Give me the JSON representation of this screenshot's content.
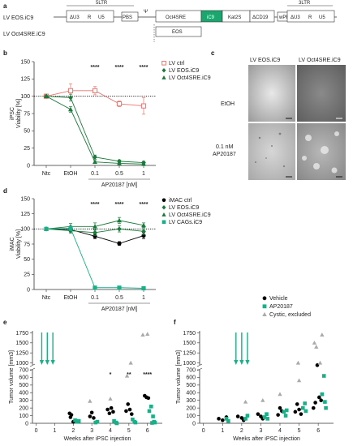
{
  "panels": {
    "a": "a",
    "b": "b",
    "c": "c",
    "d": "d",
    "e": "e",
    "f": "f"
  },
  "construct": {
    "ltr5": "5LTR",
    "ltr3": "3LTR",
    "dU3": "ΔU3",
    "R": "R",
    "U5": "U5",
    "PBS": "PBS",
    "psi": "Ψ",
    "oct4sre": "Oct4SRE",
    "ic9": "iC9",
    "kat2s": "Kat2S",
    "dcd19": "ΔCD19",
    "wpre": "wPRE",
    "eos": "EOS",
    "line1": "LV EOS.iC9",
    "line2": "LV Oct4SRE.iC9"
  },
  "colors": {
    "ctrl": "#e8756f",
    "green_dark": "#1a7a3a",
    "teal": "#18b089",
    "gray": "#aaaaaa",
    "black": "#000000"
  },
  "micrograph": {
    "col1": "LV EOS.iC9",
    "col2": "LV Oct4SRE.iC9",
    "row1": "EtOH",
    "row2a": "0.1 nM",
    "row2b": "AP20187"
  },
  "chart_data": [
    {
      "id": "b",
      "type": "line",
      "categories": [
        "Ntc",
        "EtOH",
        "0.1",
        "0.5",
        "1"
      ],
      "xlabel": "AP20187 [nM]",
      "ylabel_top": "iPSC",
      "ylabel_bottom": "Viability [%]",
      "ylim": [
        0,
        150
      ],
      "yticks": [
        0,
        25,
        50,
        75,
        100,
        125,
        150
      ],
      "reference_line": 100,
      "stars": [
        "****",
        "****",
        "****"
      ],
      "series": [
        {
          "name": "LV ctrl",
          "values": [
            100,
            108,
            108,
            89,
            86
          ],
          "err": [
            0,
            10,
            6,
            4,
            12
          ],
          "marker": "square-open",
          "color": "#e8756f"
        },
        {
          "name": "LV EOS.iC9",
          "values": [
            100,
            98,
            12,
            6,
            4
          ],
          "err": [
            0,
            5,
            3,
            2,
            2
          ],
          "marker": "diamond",
          "color": "#1a7a3a"
        },
        {
          "name": "LV Oct4SRE.iC9",
          "values": [
            100,
            81,
            5,
            3,
            2
          ],
          "err": [
            0,
            4,
            2,
            2,
            2
          ],
          "marker": "triangle",
          "color": "#1a7a3a"
        }
      ]
    },
    {
      "id": "d",
      "type": "line",
      "categories": [
        "Ntc",
        "EtOH",
        "0.1",
        "0.5",
        "1"
      ],
      "xlabel": "AP20187 [nM]",
      "ylabel_top": "iMAC",
      "ylabel_bottom": "Viability [%]",
      "ylim": [
        0,
        150
      ],
      "yticks": [
        0,
        25,
        50,
        75,
        100,
        125,
        150
      ],
      "reference_line": 100,
      "stars": [
        "****",
        "****",
        "****"
      ],
      "series": [
        {
          "name": "iMAC ctrl",
          "values": [
            100,
            99,
            88,
            76,
            89
          ],
          "err": [
            0,
            4,
            4,
            3,
            5
          ],
          "marker": "circle",
          "color": "#000000"
        },
        {
          "name": "LV EOS.iC9",
          "values": [
            100,
            97,
            94,
            100,
            96
          ],
          "err": [
            0,
            4,
            5,
            5,
            6
          ],
          "marker": "diamond",
          "color": "#1a7a3a"
        },
        {
          "name": "LV Oct4SRE.iC9",
          "values": [
            100,
            104,
            104,
            114,
            106
          ],
          "err": [
            0,
            5,
            6,
            5,
            4
          ],
          "marker": "triangle",
          "color": "#1a7a3a"
        },
        {
          "name": "LV CAGs.iC9",
          "values": [
            100,
            101,
            3,
            3,
            2
          ],
          "err": [
            0,
            4,
            2,
            2,
            1
          ],
          "marker": "square",
          "color": "#18b089"
        }
      ]
    },
    {
      "id": "e",
      "type": "scatter",
      "xlabel": "Weeks after iPSC injection",
      "ylabel": "Tumor volume [mm3]",
      "x_ticks": [
        0,
        1,
        2,
        3,
        4,
        5,
        6
      ],
      "y_ticks_lower": [
        0,
        100,
        200,
        300,
        400,
        500,
        600,
        700
      ],
      "y_ticks_upper": [
        1000,
        1250,
        1500,
        1750
      ],
      "arrow_weeks": [
        0.3,
        0.6,
        0.9
      ],
      "stars": [
        {
          "week": 4,
          "text": "*"
        },
        {
          "week": 5,
          "text": "**"
        },
        {
          "week": 6,
          "text": "****"
        }
      ],
      "series": [
        {
          "name": "Vehicle",
          "marker": "circle",
          "color": "#000000",
          "points": [
            [
              1.8,
              130
            ],
            [
              1.9,
              110
            ],
            [
              2.0,
              20
            ],
            [
              1.85,
              80
            ],
            [
              2.9,
              90
            ],
            [
              3.0,
              140
            ],
            [
              3.1,
              70
            ],
            [
              3.85,
              180
            ],
            [
              3.95,
              130
            ],
            [
              4.05,
              200
            ],
            [
              4.15,
              150
            ],
            [
              4.85,
              160
            ],
            [
              4.95,
              250
            ],
            [
              5.05,
              180
            ],
            [
              5.15,
              120
            ],
            [
              5.85,
              360
            ],
            [
              5.95,
              340
            ],
            [
              6.05,
              330
            ]
          ]
        },
        {
          "name": "AP20187",
          "marker": "square",
          "color": "#18b089",
          "points": [
            [
              2.1,
              40
            ],
            [
              2.2,
              20
            ],
            [
              2.3,
              30
            ],
            [
              3.2,
              10
            ],
            [
              3.3,
              20
            ],
            [
              4.2,
              30
            ],
            [
              4.3,
              10
            ],
            [
              4.35,
              0
            ],
            [
              5.2,
              50
            ],
            [
              5.3,
              20
            ],
            [
              5.35,
              10
            ],
            [
              6.1,
              160
            ],
            [
              6.2,
              220
            ],
            [
              6.3,
              90
            ],
            [
              6.35,
              20
            ],
            [
              6.4,
              10
            ],
            [
              6.25,
              5
            ]
          ]
        },
        {
          "name": "Cystic, excluded",
          "marker": "triangle",
          "color": "#aaaaaa",
          "points": [
            [
              2.9,
              290
            ],
            [
              4.0,
              320
            ],
            [
              4.9,
              620
            ],
            [
              5.1,
              1000
            ],
            [
              5.75,
              1700
            ],
            [
              6.0,
              1720
            ]
          ]
        }
      ]
    },
    {
      "id": "f",
      "type": "scatter",
      "xlabel": "Weeks after iPSC injection",
      "ylabel": "Tumor volume [mm3]",
      "x_ticks": [
        0,
        1,
        2,
        3,
        4,
        5,
        6
      ],
      "y_ticks_lower": [
        0,
        100,
        200,
        300,
        400,
        500,
        600,
        700
      ],
      "y_ticks_upper": [
        1000,
        1250,
        1500,
        1750
      ],
      "arrow_weeks": [
        1.7,
        2.0,
        2.3
      ],
      "series": [
        {
          "name": "Vehicle",
          "marker": "circle",
          "color": "#000000",
          "points": [
            [
              0.8,
              60
            ],
            [
              1.0,
              40
            ],
            [
              1.2,
              80
            ],
            [
              1.8,
              90
            ],
            [
              2.0,
              70
            ],
            [
              2.1,
              40
            ],
            [
              2.85,
              120
            ],
            [
              3.0,
              90
            ],
            [
              3.1,
              60
            ],
            [
              3.9,
              110
            ],
            [
              4.0,
              200
            ],
            [
              4.1,
              160
            ],
            [
              4.8,
              150
            ],
            [
              4.9,
              250
            ],
            [
              5.0,
              180
            ],
            [
              5.1,
              120
            ],
            [
              5.75,
              200
            ],
            [
              5.85,
              270
            ],
            [
              5.95,
              760
            ],
            [
              6.05,
              340
            ],
            [
              6.15,
              300
            ]
          ]
        },
        {
          "name": "AP20187",
          "marker": "square",
          "color": "#18b089",
          "points": [
            [
              1.2,
              60
            ],
            [
              1.3,
              30
            ],
            [
              2.2,
              60
            ],
            [
              2.3,
              100
            ],
            [
              3.2,
              80
            ],
            [
              3.3,
              120
            ],
            [
              3.35,
              60
            ],
            [
              4.2,
              150
            ],
            [
              4.3,
              100
            ],
            [
              4.35,
              170
            ],
            [
              5.2,
              200
            ],
            [
              5.3,
              260
            ],
            [
              5.35,
              160
            ],
            [
              6.2,
              380
            ],
            [
              6.3,
              620
            ],
            [
              6.35,
              280
            ],
            [
              6.4,
              200
            ]
          ]
        },
        {
          "name": "Cystic, excluded",
          "marker": "triangle",
          "color": "#aaaaaa",
          "points": [
            [
              2.2,
              280
            ],
            [
              3.1,
              300
            ],
            [
              4.0,
              380
            ],
            [
              4.95,
              1000
            ],
            [
              5.0,
              560
            ],
            [
              5.9,
              1400
            ],
            [
              6.1,
              1000
            ],
            [
              6.2,
              1700
            ],
            [
              5.8,
              1500
            ]
          ]
        }
      ]
    }
  ]
}
